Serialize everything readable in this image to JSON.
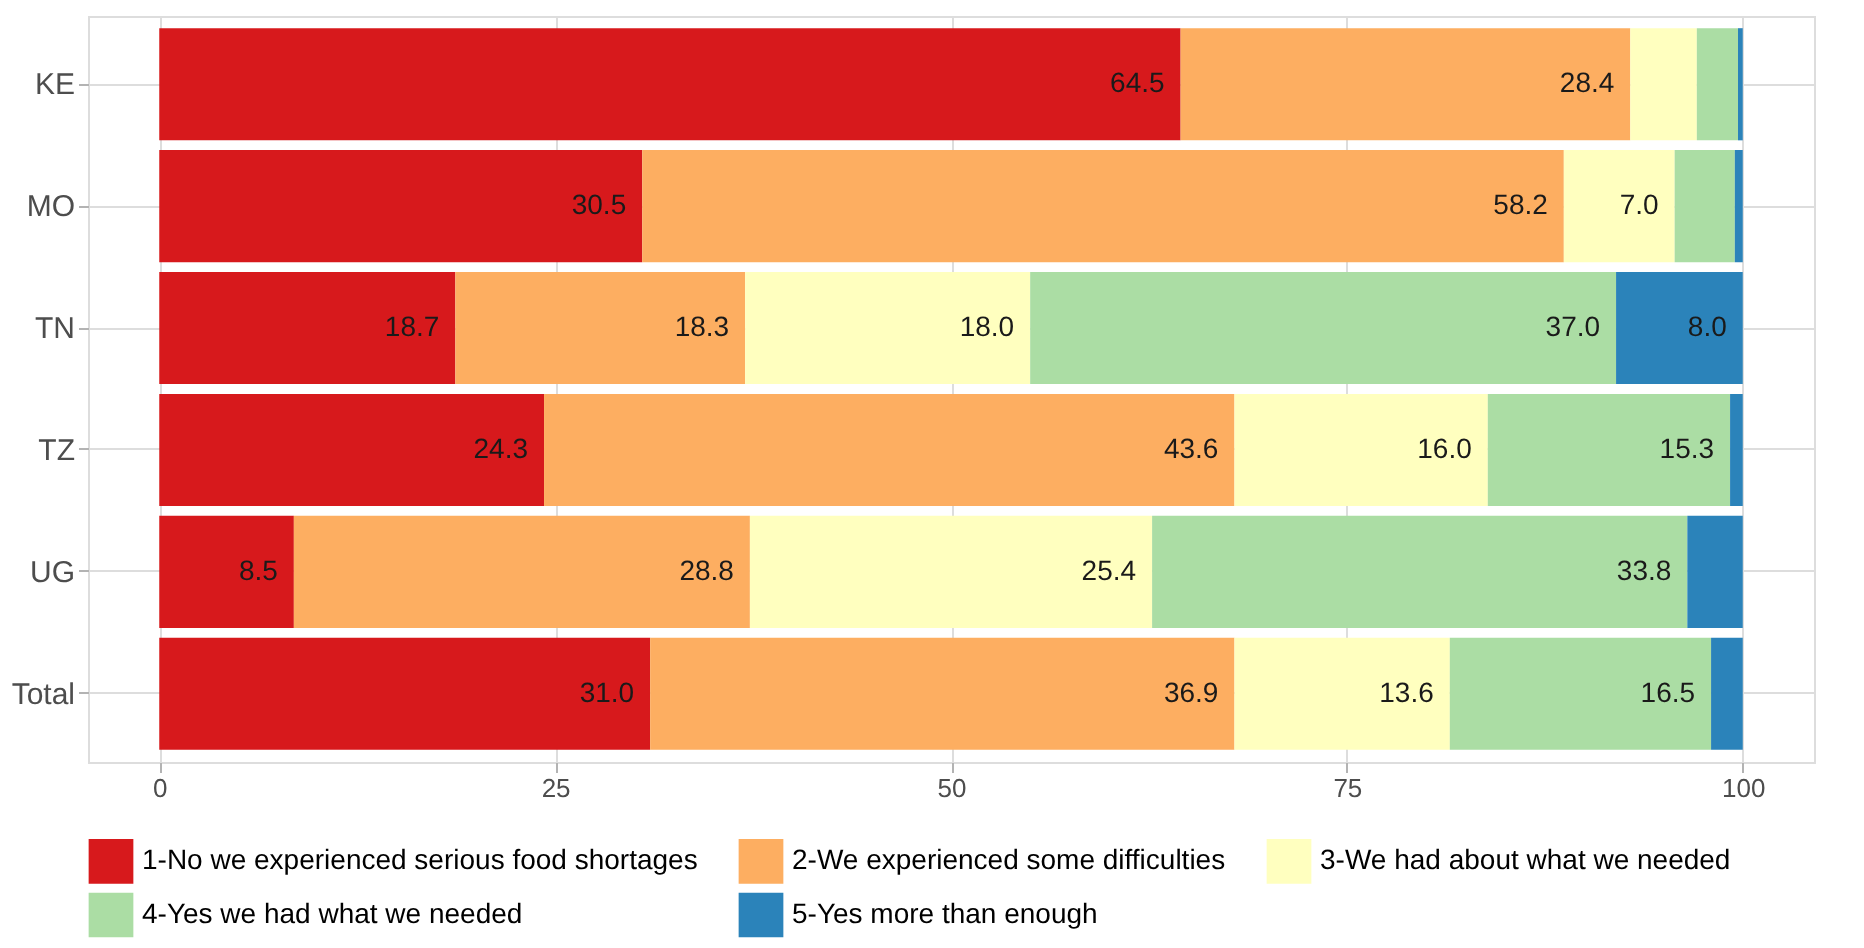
{
  "chart_data": {
    "type": "bar",
    "orientation": "horizontal",
    "stacked": true,
    "categories": [
      "KE",
      "MO",
      "TN",
      "TZ",
      "UG",
      "Total"
    ],
    "series": [
      {
        "name": "1-No we experienced serious food shortages",
        "color": "#d7191c",
        "values": [
          64.5,
          30.5,
          18.7,
          24.3,
          8.5,
          31.0
        ],
        "value_labels": [
          "64.5",
          "30.5",
          "18.7",
          "24.3",
          "8.5",
          "31.0"
        ]
      },
      {
        "name": "2-We experienced some difficulties",
        "color": "#fdae61",
        "values": [
          28.4,
          58.2,
          18.3,
          43.6,
          28.8,
          36.9
        ],
        "value_labels": [
          "28.4",
          "58.2",
          "18.3",
          "43.6",
          "28.8",
          "36.9"
        ]
      },
      {
        "name": "3-We had about what we needed",
        "color": "#ffffbf",
        "values": [
          4.2,
          7.0,
          18.0,
          16.0,
          25.4,
          13.6
        ],
        "value_labels": [
          null,
          "7.0",
          "18.0",
          "16.0",
          "25.4",
          "13.6"
        ]
      },
      {
        "name": "4-Yes we had what we needed",
        "color": "#abdda4",
        "values": [
          2.6,
          3.8,
          37.0,
          15.3,
          33.8,
          16.5
        ],
        "value_labels": [
          null,
          null,
          "37.0",
          "15.3",
          "33.8",
          "16.5"
        ]
      },
      {
        "name": "5-Yes more than enough",
        "color": "#2b83ba",
        "values": [
          0.3,
          0.5,
          8.0,
          0.8,
          3.5,
          2.0
        ],
        "value_labels": [
          null,
          null,
          "8.0",
          null,
          null,
          null
        ]
      }
    ],
    "xlim": [
      -4.5,
      104.5
    ],
    "xticks": [
      0,
      25,
      50,
      75,
      100
    ],
    "grid": true,
    "legend": "bottom"
  }
}
